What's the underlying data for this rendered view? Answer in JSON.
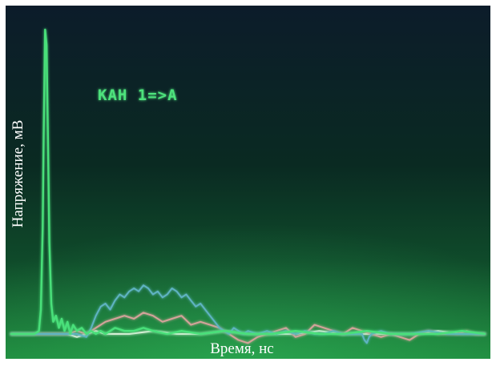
{
  "chart_data": {
    "type": "line",
    "title": "",
    "xlabel": "Время, нс",
    "ylabel": "Напряжение, мВ",
    "annotation": "KAH 1=>A",
    "grid": false,
    "legend": "none",
    "xlim": [
      0,
      100
    ],
    "ylim": [
      -5,
      100
    ],
    "series": [
      {
        "color": "#49e07a",
        "x": [
          0,
          5,
          6,
          6.4,
          6.8,
          7.0,
          7.3,
          7.6,
          7.9,
          8.2,
          8.6,
          9.0,
          9.6,
          10.2,
          10.8,
          11.4,
          12,
          12.6,
          13.2,
          14,
          15,
          16,
          17,
          18,
          19,
          20,
          22,
          24,
          26,
          28,
          30,
          33,
          36,
          40,
          45,
          50,
          55,
          60,
          65,
          70,
          75,
          80,
          85,
          90,
          95,
          100
        ],
        "values": [
          0,
          0,
          1,
          8,
          35,
          65,
          100,
          95,
          65,
          30,
          10,
          4,
          6,
          2,
          5,
          1,
          4,
          0,
          3,
          1,
          2,
          0,
          1,
          0,
          1,
          0,
          2,
          1,
          1,
          2,
          1,
          0,
          1,
          0,
          1,
          0,
          0,
          1,
          0,
          0,
          1,
          0,
          0,
          0,
          1,
          0
        ]
      },
      {
        "color": "#5fb3c2",
        "x": [
          0,
          12,
          14,
          16,
          17,
          18,
          19,
          20,
          21,
          22,
          23,
          24,
          25,
          26,
          27,
          28,
          29,
          30,
          31,
          32,
          33,
          34,
          35,
          36,
          37,
          38,
          39,
          40,
          41,
          42,
          43,
          44,
          45,
          46,
          47,
          48,
          49,
          50,
          52,
          54,
          56,
          58,
          60,
          62,
          64,
          66,
          68,
          70,
          72,
          74,
          74.5,
          75,
          75.5,
          76,
          78,
          80,
          84,
          88,
          92,
          96,
          100
        ],
        "values": [
          0,
          0,
          0,
          -1,
          2,
          6,
          9,
          10,
          8,
          11,
          13,
          12,
          14,
          15,
          14,
          16,
          15,
          13,
          14,
          12,
          13,
          15,
          14,
          12,
          13,
          11,
          9,
          10,
          8,
          6,
          4,
          2,
          1,
          0,
          2,
          1,
          0,
          1,
          0,
          1,
          0,
          1,
          0,
          1,
          0,
          0,
          1,
          0,
          0,
          0,
          -2,
          -3,
          -1,
          0,
          1,
          0,
          0,
          1,
          0,
          0,
          0
        ]
      },
      {
        "color": "#d4a39a",
        "x": [
          0,
          12,
          14,
          16,
          18,
          20,
          22,
          24,
          26,
          28,
          30,
          32,
          34,
          36,
          38,
          40,
          42,
          44,
          46,
          48,
          50,
          52,
          54,
          56,
          58,
          60,
          62,
          64,
          66,
          68,
          70,
          72,
          74,
          76,
          78,
          80,
          82,
          84,
          86,
          88,
          90,
          92,
          94,
          96,
          98,
          100
        ],
        "values": [
          0,
          0,
          1,
          0,
          2,
          4,
          5,
          6,
          5,
          7,
          6,
          4,
          5,
          6,
          3,
          4,
          3,
          2,
          0,
          -2,
          -3,
          -1,
          0,
          1,
          2,
          -1,
          0,
          3,
          2,
          1,
          0,
          2,
          1,
          0,
          -1,
          0,
          -1,
          -2,
          0,
          1,
          0,
          0,
          0,
          1,
          0,
          0
        ]
      },
      {
        "color": "#d6efd6",
        "x": [
          0,
          10,
          12,
          14,
          16,
          18,
          20,
          25,
          30,
          35,
          40,
          45,
          50,
          55,
          60,
          65,
          70,
          75,
          80,
          85,
          90,
          95,
          100
        ],
        "values": [
          0,
          0,
          0,
          -1,
          0,
          1,
          0,
          0,
          1,
          0,
          0,
          1,
          0,
          0,
          0,
          1,
          0,
          0,
          0,
          0,
          1,
          0,
          0
        ]
      }
    ]
  }
}
